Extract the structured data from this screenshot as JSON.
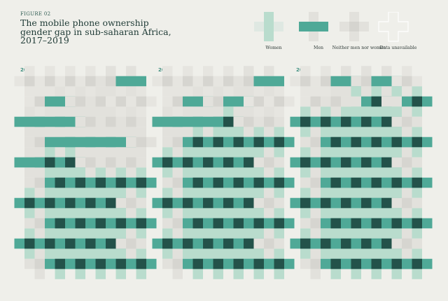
{
  "figure_label": "FIGURE 02",
  "title": "The mobile phone ownership gender gap in sub-saharan Africa, 2017–2019",
  "colors": {
    "background": "#efefea",
    "women": "#b9dccd",
    "men": "#4fa997",
    "both": "#23524a",
    "neither": "#e2e1dc",
    "unavailable_stroke": "#ffffff"
  },
  "legend": [
    {
      "key": "women",
      "label": "Women"
    },
    {
      "key": "men",
      "label": "Men"
    },
    {
      "key": "neither",
      "label": "Neither men nor women"
    },
    {
      "key": "unavailable",
      "label": "Data unavailable"
    }
  ],
  "panels": [
    {
      "year": "2017",
      "rows": [
        "....NM",
        ".MNN..",
        "MMMNNN",
        "NMMMMN",
        "MBBNNN",
        "NBBBBB",
        "BBBBBN",
        "NBBBBB",
        "BBBBBN",
        "NBBBBB"
      ]
    },
    {
      "year": "2018",
      "rows": [
        "....NM",
        ".MNM..",
        "MMMBNN",
        "NBBBBB",
        "BBBBBN",
        "NBBBBB",
        "BBBBBN",
        "NBBBBB",
        "BBBBBN",
        "NBBBBB"
      ]
    },
    {
      "year": "2019",
      "rows": [
        "..MNM.",
        ".NWBWB",
        "BBBBBN",
        "NBBBBB",
        "BBBBBN",
        "NBBBBB",
        "BBBBBN",
        "NBBBBB",
        "BBBBBN",
        "NBBBBB"
      ]
    }
  ]
}
